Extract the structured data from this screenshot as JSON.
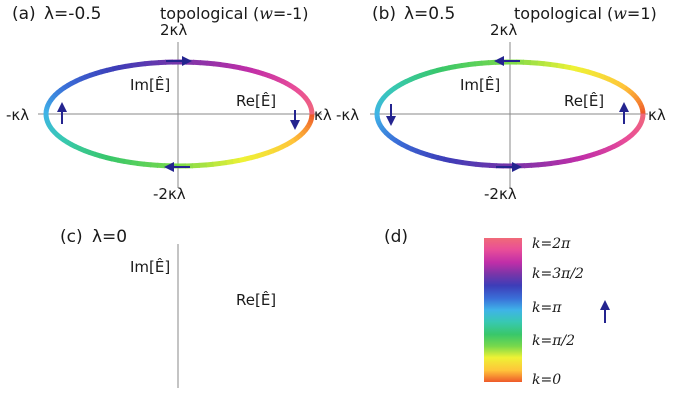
{
  "panels": {
    "a": {
      "label": "(a)",
      "lambda_eq": "λ=-0.5",
      "phase": "topological (",
      "w_symbol": "w",
      "w_value": "=-1)",
      "top_tick": "2κλ",
      "bottom_tick": "-2κλ",
      "left_tick": "-κλ",
      "right_tick": "κλ",
      "im_axis": "Im[Ê]",
      "re_axis": "Re[Ê]"
    },
    "b": {
      "label": "(b)",
      "lambda_eq": "λ=0.5",
      "phase": "topological (",
      "w_symbol": "w",
      "w_value": "=1)",
      "top_tick": "2κλ",
      "bottom_tick": "-2κλ",
      "left_tick": "-κλ",
      "right_tick": "κλ",
      "im_axis": "Im[Ê]",
      "re_axis": "Re[Ê]"
    },
    "c": {
      "label": "(c)",
      "lambda_eq": "λ=0",
      "im_axis": "Im[Ê]",
      "re_axis": "Re[Ê]"
    },
    "d": {
      "label": "(d)",
      "ticks": [
        "k=2π",
        "k=3π/2",
        "k=π",
        "k=π/2",
        "k=0"
      ]
    }
  },
  "colors": {
    "arrow": "#24248f",
    "axis": "#8a8a8a",
    "colormap": [
      "#ee5a2a",
      "#ffc43a",
      "#eef235",
      "#76d84c",
      "#39c76a",
      "#38c8b4",
      "#3fb3e8",
      "#3a6fd8",
      "#3d3db8",
      "#7a35a8",
      "#c02ea8",
      "#e94e98",
      "#f06a78"
    ]
  }
}
